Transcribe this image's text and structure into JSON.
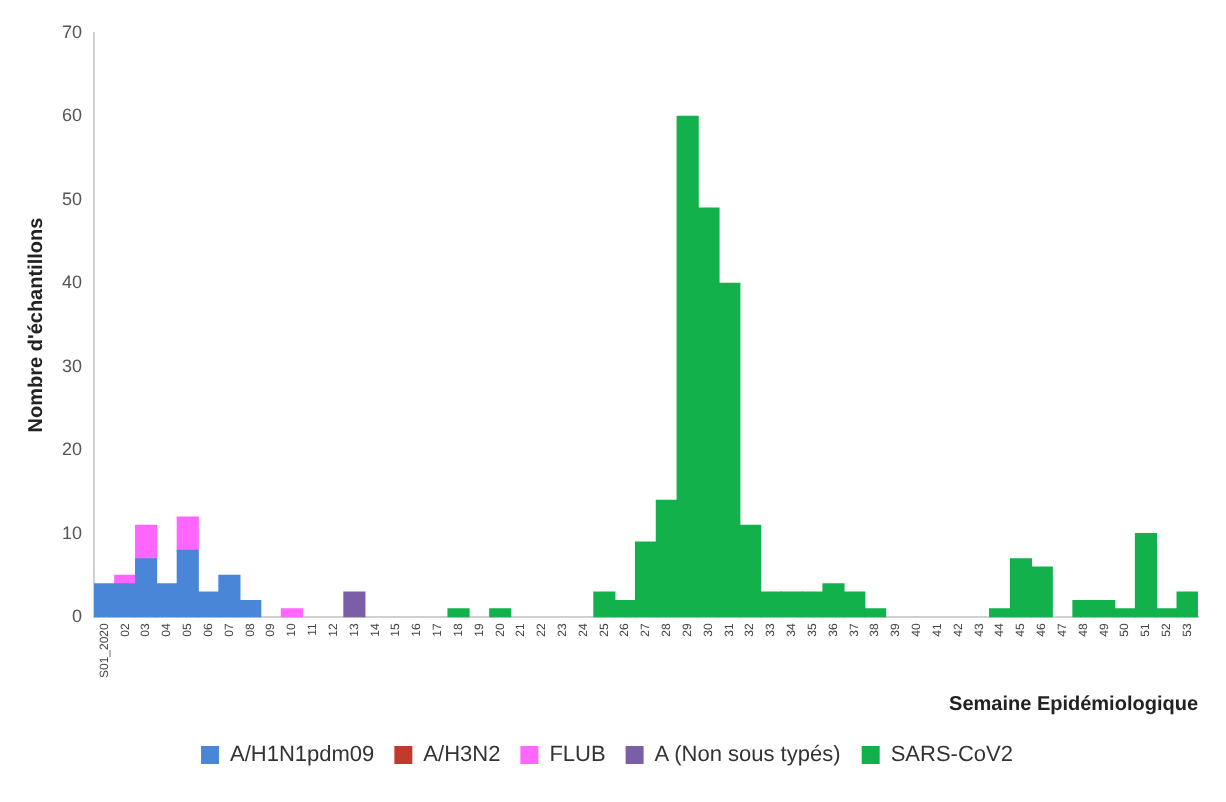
{
  "chart_data": {
    "type": "bar",
    "stacked": true,
    "xlabel": "Semaine Epidémiologique",
    "ylabel": "Nombre d'échantillons",
    "categories": [
      "S01_2020",
      "02",
      "03",
      "04",
      "05",
      "06",
      "07",
      "08",
      "09",
      "10",
      "11",
      "12",
      "13",
      "14",
      "15",
      "16",
      "17",
      "18",
      "19",
      "20",
      "21",
      "22",
      "23",
      "24",
      "25",
      "26",
      "27",
      "28",
      "29",
      "30",
      "31",
      "32",
      "33",
      "34",
      "35",
      "36",
      "37",
      "38",
      "39",
      "40",
      "41",
      "42",
      "43",
      "44",
      "45",
      "46",
      "47",
      "48",
      "49",
      "50",
      "51",
      "52",
      "53"
    ],
    "series": [
      {
        "name": "A/H1N1pdm09",
        "color": "#4a86d8",
        "values": [
          4,
          4,
          7,
          4,
          8,
          3,
          5,
          2,
          null,
          null,
          null,
          null,
          null,
          null,
          null,
          null,
          null,
          null,
          null,
          null,
          null,
          null,
          null,
          null,
          null,
          null,
          null,
          null,
          null,
          null,
          null,
          null,
          null,
          null,
          null,
          null,
          null,
          null,
          null,
          null,
          null,
          null,
          null,
          null,
          null,
          null,
          null,
          null,
          null,
          null,
          null,
          null,
          null
        ]
      },
      {
        "name": "A/H3N2",
        "color": "#c0392b",
        "values": [
          null,
          null,
          null,
          null,
          null,
          null,
          null,
          null,
          null,
          null,
          null,
          null,
          null,
          null,
          null,
          null,
          null,
          null,
          null,
          null,
          null,
          null,
          null,
          null,
          null,
          null,
          null,
          null,
          null,
          null,
          null,
          null,
          null,
          null,
          null,
          null,
          null,
          null,
          null,
          null,
          null,
          null,
          null,
          null,
          null,
          null,
          null,
          null,
          null,
          null,
          null,
          null,
          null
        ]
      },
      {
        "name": "FLUB",
        "color": "#ff66ff",
        "values": [
          null,
          1,
          4,
          null,
          4,
          null,
          null,
          null,
          null,
          1,
          null,
          null,
          null,
          null,
          null,
          null,
          null,
          null,
          null,
          null,
          null,
          null,
          null,
          null,
          null,
          null,
          null,
          null,
          null,
          null,
          null,
          null,
          null,
          null,
          null,
          null,
          null,
          null,
          null,
          null,
          null,
          null,
          null,
          null,
          null,
          null,
          null,
          null,
          null,
          null,
          null,
          null,
          null
        ]
      },
      {
        "name": "A (Non sous typés)",
        "color": "#7a5fa8",
        "values": [
          null,
          null,
          null,
          null,
          null,
          null,
          null,
          null,
          null,
          null,
          null,
          null,
          3,
          null,
          null,
          null,
          null,
          null,
          null,
          null,
          null,
          null,
          null,
          null,
          null,
          null,
          null,
          null,
          null,
          null,
          null,
          null,
          null,
          null,
          null,
          null,
          null,
          null,
          null,
          null,
          null,
          null,
          null,
          null,
          null,
          null,
          null,
          null,
          null,
          null,
          null,
          null,
          null
        ]
      },
      {
        "name": "SARS-CoV2",
        "color": "#12b14c",
        "values": [
          null,
          null,
          null,
          null,
          null,
          null,
          null,
          null,
          null,
          null,
          null,
          null,
          null,
          null,
          null,
          null,
          null,
          1,
          null,
          1,
          null,
          null,
          null,
          null,
          3,
          2,
          9,
          14,
          60,
          49,
          40,
          11,
          3,
          3,
          3,
          4,
          3,
          1,
          null,
          null,
          null,
          null,
          null,
          1,
          7,
          6,
          null,
          2,
          2,
          1,
          10,
          1,
          3
        ]
      }
    ],
    "ylim": [
      0,
      70
    ],
    "yticks": [
      0,
      10,
      20,
      30,
      40,
      50,
      60,
      70
    ],
    "grid": false,
    "legend": "bottom"
  }
}
